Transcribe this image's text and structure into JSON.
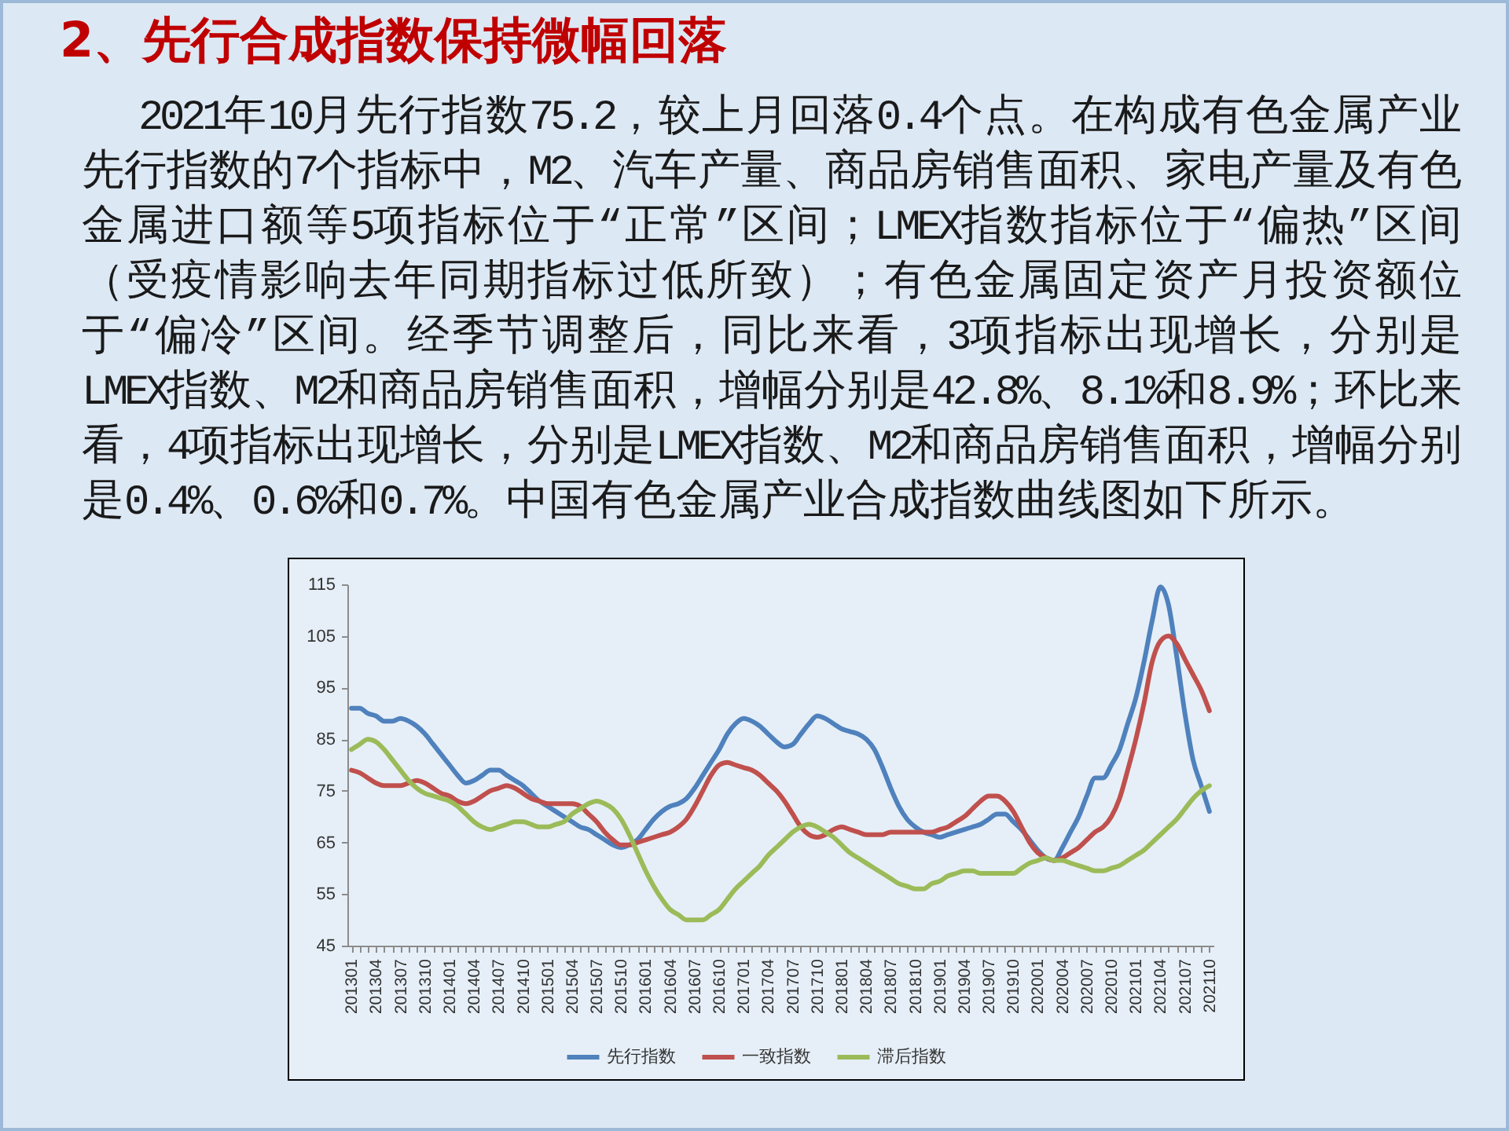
{
  "chart_data": {
    "type": "line",
    "title": "2、先行合成指数保持微幅回落",
    "subtitle": "2021年10月先行指数75.2，较上月回落0.4个点。在构成有色金属产业先行指数的7个指标中，M2、汽车产量、商品房销售面积、家电产量及有色金属进口额等5项指标位于“正常”区间；LMEX指数指标位于“偏热”区间（受疫情影响去年同期指标过低所致）；有色金属固定资产月投资额位于“偏冷”区间。经季节调整后，同比来看，3项指标出现增长，分别是LMEX指数、M2和商品房销售面积，增幅分别是42.8%、8.1%和8.9%；环比来看，4项指标出现增长，分别是LMEX指数、M2和商品房销售面积，增幅分别是0.4%、0.6%和0.7%。中国有色金属产业合成指数曲线图如下所示。",
    "categories": [
      "201301",
      null,
      null,
      "201304",
      null,
      null,
      "201307",
      null,
      null,
      "201310",
      null,
      null,
      "201401",
      null,
      null,
      "201404",
      null,
      null,
      "201407",
      null,
      null,
      "201410",
      null,
      null,
      "201501",
      null,
      null,
      "201504",
      null,
      null,
      "201507",
      null,
      null,
      "201510",
      null,
      null,
      "201601",
      null,
      null,
      "201604",
      null,
      null,
      "201607",
      null,
      null,
      "201610",
      null,
      null,
      "201701",
      null,
      null,
      "201704",
      null,
      null,
      "201707",
      null,
      null,
      "201710",
      null,
      null,
      "201801",
      null,
      null,
      "201804",
      null,
      null,
      "201807",
      null,
      null,
      "201810",
      null,
      null,
      "201901",
      null,
      null,
      "201904",
      null,
      null,
      "201907",
      null,
      null,
      "201910",
      null,
      null,
      "202001",
      null,
      null,
      "202004",
      null,
      null,
      "202007",
      null,
      null,
      "202010",
      null,
      null,
      "202101",
      null,
      null,
      "202104",
      null,
      null,
      "202107",
      null,
      null,
      "202110"
    ],
    "series": [
      {
        "name": "先行指数",
        "color": "#4f81bd",
        "values": [
          91,
          91,
          90,
          89.5,
          88.5,
          88.5,
          89,
          88.5,
          87.5,
          86,
          84,
          82,
          80,
          78,
          76.5,
          77,
          78,
          79,
          79,
          78,
          77,
          76,
          74.5,
          73,
          72,
          71,
          70,
          69,
          68,
          67.5,
          66.5,
          65.5,
          64.5,
          64,
          64.5,
          65.5,
          67.5,
          69.5,
          71,
          72,
          72.5,
          73.5,
          75.5,
          78,
          80.5,
          83,
          86,
          88,
          89,
          88.5,
          87.5,
          86,
          84.5,
          83.5,
          84,
          86,
          88,
          89.5,
          89,
          88,
          87,
          86.5,
          86,
          85,
          83,
          79.5,
          75.5,
          72,
          69.5,
          68,
          67,
          66.5,
          66,
          66.5,
          67,
          67.5,
          68,
          68.5,
          69.5,
          70.5,
          70.5,
          69,
          67.5,
          65.5,
          63.5,
          62,
          61.5,
          64,
          67,
          70,
          74,
          77.5,
          77.5,
          80,
          83,
          88,
          93,
          100,
          108,
          114.5,
          111,
          101,
          90,
          81,
          76,
          71
        ]
      },
      {
        "name": "一致指数",
        "color": "#c0504d",
        "values": [
          79,
          78.5,
          77.5,
          76.5,
          76,
          76,
          76,
          76.5,
          77,
          76.5,
          75.5,
          74.5,
          74,
          73,
          72.5,
          73,
          74,
          75,
          75.5,
          76,
          75.5,
          74.5,
          73.5,
          73,
          72.5,
          72.5,
          72.5,
          72.5,
          72,
          70.5,
          69,
          67,
          65.5,
          64.5,
          64.5,
          65,
          65.5,
          66,
          66.5,
          67,
          68,
          69.5,
          72,
          75,
          78,
          80,
          80.5,
          80,
          79.5,
          79,
          78,
          76.5,
          75,
          73,
          70.5,
          68,
          66.5,
          66,
          66.5,
          67.5,
          68,
          67.5,
          67,
          66.5,
          66.5,
          66.5,
          67,
          67,
          67,
          67,
          67,
          67,
          67.5,
          68,
          69,
          70,
          71.5,
          73,
          74,
          74,
          73,
          71,
          68,
          65,
          63,
          62,
          61.5,
          62,
          63,
          64,
          65.5,
          67,
          68,
          70,
          73.5,
          79,
          85,
          92,
          100,
          104,
          105,
          103.5,
          100.5,
          97.5,
          94.5,
          90.5
        ]
      },
      {
        "name": "滞后指数",
        "color": "#9bbb59",
        "values": [
          83,
          84,
          85,
          84.5,
          83,
          81,
          79,
          77,
          75.5,
          74.5,
          74,
          73.5,
          73,
          72,
          70.5,
          69,
          68,
          67.5,
          68,
          68.5,
          69,
          69,
          68.5,
          68,
          68,
          68.5,
          69,
          70.5,
          71.5,
          72.5,
          73,
          72.5,
          71.5,
          69.5,
          66.5,
          63,
          59.5,
          56.5,
          54,
          52,
          51,
          50,
          50,
          50,
          51,
          52,
          54,
          56,
          57.5,
          59,
          60.5,
          62.5,
          64,
          65.5,
          67,
          68,
          68.5,
          68,
          67,
          66,
          64.5,
          63,
          62,
          61,
          60,
          59,
          58,
          57,
          56.5,
          56,
          56,
          57,
          57.5,
          58.5,
          59,
          59.5,
          59.5,
          59,
          59,
          59,
          59,
          59,
          60,
          61,
          61.5,
          62,
          61.5,
          61.5,
          61,
          60.5,
          60,
          59.5,
          59.5,
          60,
          60.5,
          61.5,
          62.5,
          63.5,
          65,
          66.5,
          68,
          69.5,
          71.5,
          73.5,
          75,
          76
        ]
      }
    ],
    "ylim": [
      45,
      115
    ],
    "yticks": [
      45,
      55,
      65,
      75,
      85,
      95,
      105,
      115
    ],
    "grid": false,
    "legend": "bottom"
  }
}
